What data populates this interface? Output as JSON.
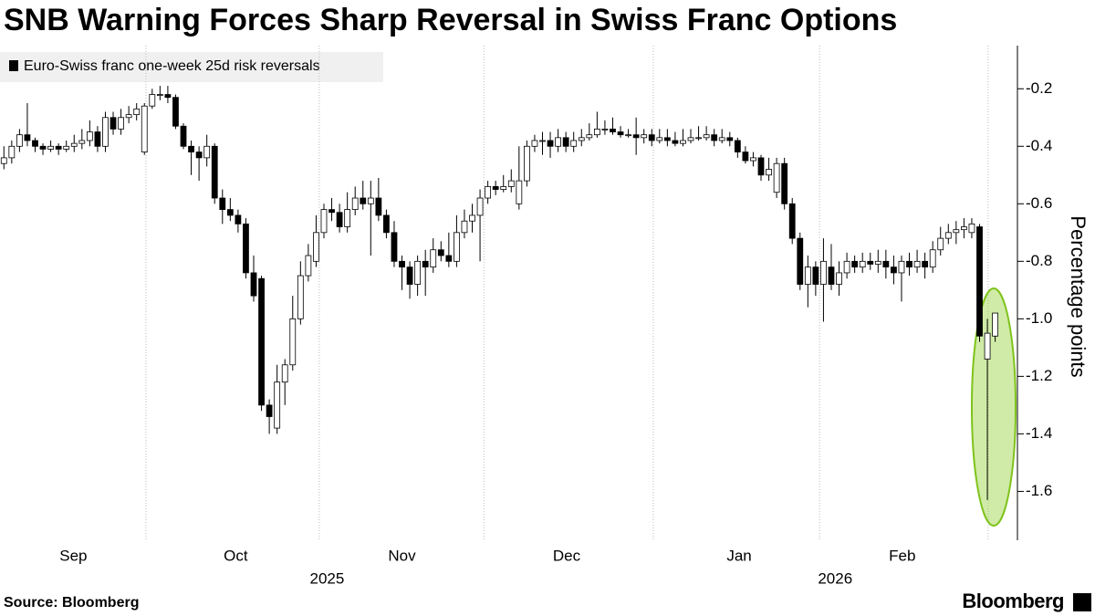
{
  "chart_data": {
    "type": "candlestick",
    "title": "SNB Warning Forces Sharp Reversal in Swiss Franc Options",
    "y_label": "Percentage points",
    "source": "Source: Bloomberg",
    "brand": "Bloomberg",
    "legend_position": "top-left",
    "up_color": "#ffffff",
    "down_color": "#000000",
    "series": [
      {
        "name": "Euro-Swiss franc one-week 25d risk reversals",
        "color": "#000000",
        "values": [
          [
            -0.46,
            -0.4,
            -0.48,
            -0.44
          ],
          [
            -0.44,
            -0.38,
            -0.46,
            -0.4
          ],
          [
            -0.4,
            -0.34,
            -0.42,
            -0.36
          ],
          [
            -0.36,
            -0.25,
            -0.4,
            -0.38
          ],
          [
            -0.38,
            -0.37,
            -0.42,
            -0.4
          ],
          [
            -0.4,
            -0.39,
            -0.43,
            -0.41
          ],
          [
            -0.41,
            -0.38,
            -0.42,
            -0.4
          ],
          [
            -0.4,
            -0.39,
            -0.43,
            -0.41
          ],
          [
            -0.41,
            -0.38,
            -0.42,
            -0.4
          ],
          [
            -0.4,
            -0.36,
            -0.42,
            -0.39
          ],
          [
            -0.39,
            -0.34,
            -0.41,
            -0.38
          ],
          [
            -0.38,
            -0.31,
            -0.4,
            -0.35
          ],
          [
            -0.35,
            -0.33,
            -0.42,
            -0.4
          ],
          [
            -0.4,
            -0.28,
            -0.42,
            -0.3
          ],
          [
            -0.3,
            -0.28,
            -0.36,
            -0.34
          ],
          [
            -0.34,
            -0.27,
            -0.36,
            -0.3
          ],
          [
            -0.3,
            -0.26,
            -0.32,
            -0.29
          ],
          [
            -0.29,
            -0.25,
            -0.31,
            -0.27
          ],
          [
            -0.42,
            -0.25,
            -0.43,
            -0.26
          ],
          [
            -0.26,
            -0.2,
            -0.27,
            -0.22
          ],
          [
            -0.22,
            -0.19,
            -0.24,
            -0.22
          ],
          [
            -0.22,
            -0.19,
            -0.25,
            -0.23
          ],
          [
            -0.23,
            -0.22,
            -0.34,
            -0.33
          ],
          [
            -0.33,
            -0.32,
            -0.41,
            -0.4
          ],
          [
            -0.4,
            -0.38,
            -0.5,
            -0.42
          ],
          [
            -0.42,
            -0.4,
            -0.52,
            -0.44
          ],
          [
            -0.44,
            -0.36,
            -0.47,
            -0.4
          ],
          [
            -0.4,
            -0.39,
            -0.6,
            -0.58
          ],
          [
            -0.58,
            -0.55,
            -0.67,
            -0.62
          ],
          [
            -0.62,
            -0.58,
            -0.66,
            -0.64
          ],
          [
            -0.64,
            -0.62,
            -0.7,
            -0.67
          ],
          [
            -0.67,
            -0.65,
            -0.86,
            -0.84
          ],
          [
            -0.84,
            -0.78,
            -0.94,
            -0.92
          ],
          [
            -0.86,
            -0.85,
            -1.32,
            -1.3
          ],
          [
            -1.3,
            -1.28,
            -1.4,
            -1.34
          ],
          [
            -1.38,
            -1.16,
            -1.4,
            -1.22
          ],
          [
            -1.22,
            -1.14,
            -1.3,
            -1.16
          ],
          [
            -1.16,
            -0.92,
            -1.18,
            -1.0
          ],
          [
            -1.0,
            -0.8,
            -1.02,
            -0.85
          ],
          [
            -0.85,
            -0.74,
            -0.87,
            -0.78
          ],
          [
            -0.8,
            -0.64,
            -0.82,
            -0.7
          ],
          [
            -0.7,
            -0.6,
            -0.72,
            -0.62
          ],
          [
            -0.62,
            -0.58,
            -0.66,
            -0.63
          ],
          [
            -0.63,
            -0.6,
            -0.7,
            -0.68
          ],
          [
            -0.68,
            -0.56,
            -0.7,
            -0.62
          ],
          [
            -0.62,
            -0.54,
            -0.64,
            -0.58
          ],
          [
            -0.58,
            -0.52,
            -0.62,
            -0.6
          ],
          [
            -0.6,
            -0.52,
            -0.78,
            -0.58
          ],
          [
            -0.58,
            -0.51,
            -0.66,
            -0.64
          ],
          [
            -0.64,
            -0.62,
            -0.72,
            -0.7
          ],
          [
            -0.7,
            -0.66,
            -0.82,
            -0.8
          ],
          [
            -0.8,
            -0.78,
            -0.9,
            -0.82
          ],
          [
            -0.82,
            -0.8,
            -0.93,
            -0.88
          ],
          [
            -0.88,
            -0.78,
            -0.92,
            -0.8
          ],
          [
            -0.8,
            -0.76,
            -0.92,
            -0.82
          ],
          [
            -0.82,
            -0.72,
            -0.84,
            -0.76
          ],
          [
            -0.76,
            -0.73,
            -0.8,
            -0.78
          ],
          [
            -0.78,
            -0.7,
            -0.82,
            -0.8
          ],
          [
            -0.8,
            -0.64,
            -0.82,
            -0.7
          ],
          [
            -0.7,
            -0.62,
            -0.72,
            -0.66
          ],
          [
            -0.66,
            -0.6,
            -0.7,
            -0.64
          ],
          [
            -0.64,
            -0.55,
            -0.8,
            -0.58
          ],
          [
            -0.58,
            -0.52,
            -0.6,
            -0.54
          ],
          [
            -0.54,
            -0.52,
            -0.57,
            -0.55
          ],
          [
            -0.55,
            -0.5,
            -0.56,
            -0.54
          ],
          [
            -0.54,
            -0.48,
            -0.56,
            -0.52
          ],
          [
            -0.6,
            -0.4,
            -0.62,
            -0.52
          ],
          [
            -0.52,
            -0.38,
            -0.54,
            -0.4
          ],
          [
            -0.4,
            -0.36,
            -0.42,
            -0.38
          ],
          [
            -0.38,
            -0.35,
            -0.43,
            -0.38
          ],
          [
            -0.38,
            -0.35,
            -0.44,
            -0.4
          ],
          [
            -0.4,
            -0.34,
            -0.42,
            -0.37
          ],
          [
            -0.37,
            -0.35,
            -0.42,
            -0.4
          ],
          [
            -0.4,
            -0.35,
            -0.42,
            -0.38
          ],
          [
            -0.38,
            -0.34,
            -0.4,
            -0.37
          ],
          [
            -0.37,
            -0.32,
            -0.38,
            -0.36
          ],
          [
            -0.36,
            -0.28,
            -0.37,
            -0.34
          ],
          [
            -0.34,
            -0.31,
            -0.36,
            -0.34
          ],
          [
            -0.34,
            -0.3,
            -0.36,
            -0.35
          ],
          [
            -0.35,
            -0.33,
            -0.37,
            -0.36
          ],
          [
            -0.36,
            -0.34,
            -0.37,
            -0.36
          ],
          [
            -0.36,
            -0.3,
            -0.43,
            -0.37
          ],
          [
            -0.37,
            -0.34,
            -0.39,
            -0.36
          ],
          [
            -0.36,
            -0.34,
            -0.4,
            -0.38
          ],
          [
            -0.38,
            -0.34,
            -0.39,
            -0.37
          ],
          [
            -0.37,
            -0.34,
            -0.4,
            -0.38
          ],
          [
            -0.38,
            -0.35,
            -0.4,
            -0.39
          ],
          [
            -0.39,
            -0.34,
            -0.4,
            -0.38
          ],
          [
            -0.38,
            -0.34,
            -0.39,
            -0.37
          ],
          [
            -0.37,
            -0.33,
            -0.38,
            -0.37
          ],
          [
            -0.37,
            -0.33,
            -0.38,
            -0.36
          ],
          [
            -0.36,
            -0.34,
            -0.4,
            -0.38
          ],
          [
            -0.38,
            -0.34,
            -0.39,
            -0.37
          ],
          [
            -0.37,
            -0.35,
            -0.4,
            -0.38
          ],
          [
            -0.38,
            -0.37,
            -0.44,
            -0.42
          ],
          [
            -0.42,
            -0.4,
            -0.46,
            -0.45
          ],
          [
            -0.45,
            -0.42,
            -0.47,
            -0.44
          ],
          [
            -0.44,
            -0.43,
            -0.52,
            -0.5
          ],
          [
            -0.5,
            -0.44,
            -0.52,
            -0.48
          ],
          [
            -0.56,
            -0.44,
            -0.58,
            -0.46
          ],
          [
            -0.46,
            -0.44,
            -0.62,
            -0.6
          ],
          [
            -0.6,
            -0.58,
            -0.74,
            -0.72
          ],
          [
            -0.72,
            -0.7,
            -0.9,
            -0.88
          ],
          [
            -0.88,
            -0.78,
            -0.96,
            -0.82
          ],
          [
            -0.82,
            -0.8,
            -0.92,
            -0.88
          ],
          [
            -0.88,
            -0.72,
            -1.01,
            -0.8
          ],
          [
            -0.82,
            -0.74,
            -0.9,
            -0.88
          ],
          [
            -0.88,
            -0.8,
            -0.92,
            -0.84
          ],
          [
            -0.84,
            -0.77,
            -0.86,
            -0.8
          ],
          [
            -0.8,
            -0.78,
            -0.84,
            -0.82
          ],
          [
            -0.82,
            -0.77,
            -0.84,
            -0.8
          ],
          [
            -0.8,
            -0.77,
            -0.83,
            -0.81
          ],
          [
            -0.81,
            -0.76,
            -0.84,
            -0.8
          ],
          [
            -0.8,
            -0.76,
            -0.86,
            -0.82
          ],
          [
            -0.82,
            -0.78,
            -0.88,
            -0.84
          ],
          [
            -0.84,
            -0.78,
            -0.94,
            -0.8
          ],
          [
            -0.8,
            -0.77,
            -0.85,
            -0.82
          ],
          [
            -0.82,
            -0.76,
            -0.84,
            -0.8
          ],
          [
            -0.8,
            -0.77,
            -0.86,
            -0.82
          ],
          [
            -0.82,
            -0.73,
            -0.84,
            -0.76
          ],
          [
            -0.76,
            -0.68,
            -0.78,
            -0.72
          ],
          [
            -0.72,
            -0.67,
            -0.74,
            -0.7
          ],
          [
            -0.7,
            -0.66,
            -0.74,
            -0.69
          ],
          [
            -0.69,
            -0.65,
            -0.72,
            -0.68
          ],
          [
            -0.7,
            -0.65,
            -0.72,
            -0.67
          ],
          [
            -0.68,
            -0.67,
            -1.08,
            -1.06
          ],
          [
            -1.14,
            -1.0,
            -1.63,
            -1.05
          ],
          [
            -1.06,
            -0.98,
            -1.08,
            -0.98
          ]
        ]
      }
    ],
    "xlim": [
      -0.5,
      129.5
    ],
    "xticks": [
      {
        "value": 8.9,
        "label": "Sep"
      },
      {
        "value": 29.7,
        "label": "Oct"
      },
      {
        "value": 51,
        "label": "Nov"
      },
      {
        "value": 72.1,
        "label": "Dec"
      },
      {
        "value": 94.2,
        "label": "Jan"
      },
      {
        "value": 115.1,
        "label": "Feb"
      }
    ],
    "year_ticks": [
      {
        "value": 41.4,
        "label": "2025"
      },
      {
        "value": 106.5,
        "label": "2026"
      }
    ],
    "xgrid": [
      18.2,
      40.4,
      61.5,
      83.2,
      104.5,
      126.1
    ],
    "ylim": [
      -1.77,
      -0.05
    ],
    "yticks": [
      -0.2,
      -0.4,
      -0.6,
      -0.8,
      {
        "value": -1,
        "label": "-1.0"
      },
      -1.2,
      -1.4,
      -1.6
    ],
    "grid": true
  }
}
